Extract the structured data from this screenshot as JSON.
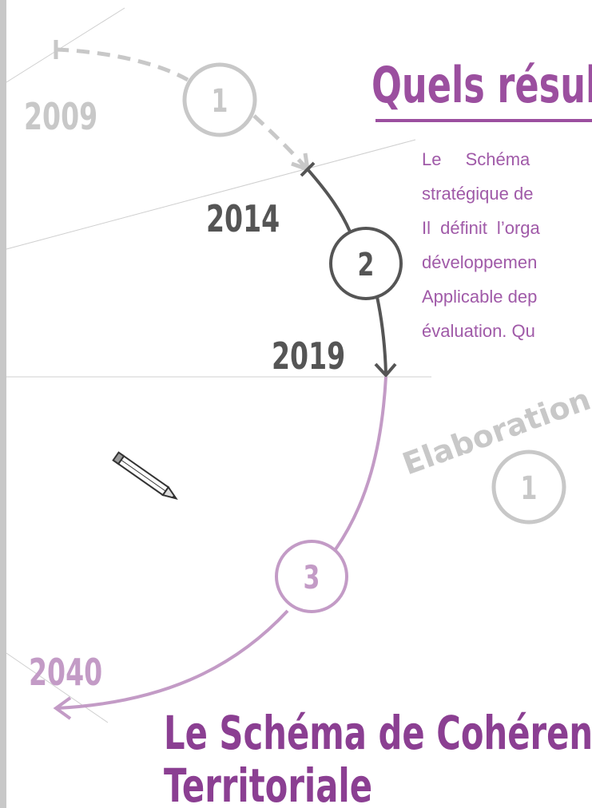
{
  "header": {
    "title": "Quels résul"
  },
  "paragraph": {
    "lines": [
      "Le Schéma",
      "stratégique de",
      "Il définit l’orga",
      "développemen",
      "Applicable dep",
      "évaluation. Qu"
    ]
  },
  "timeline": {
    "years": [
      "2009",
      "2014",
      "2019",
      "2040"
    ],
    "steps": [
      "1",
      "2",
      "3"
    ]
  },
  "stage": {
    "label": "Elaboration",
    "number": "1"
  },
  "footer": {
    "title_lines": [
      "Le Schéma de Cohérence",
      "Territoriale"
    ]
  }
}
